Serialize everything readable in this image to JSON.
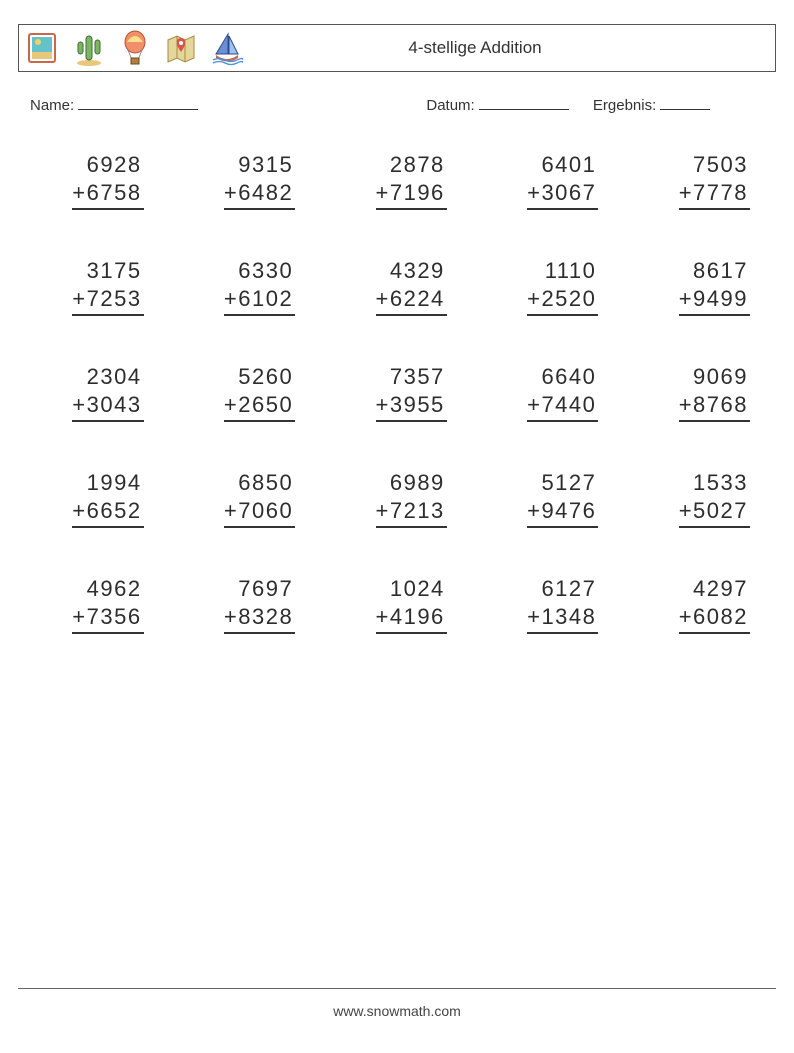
{
  "title": "4-stellige Addition",
  "labels": {
    "name": "Name:",
    "date": "Datum:",
    "score": "Ergebnis:"
  },
  "footer": "www.snowmath.com",
  "operation": "+",
  "columns": 5,
  "fonts": {
    "title_size": 17,
    "body_size": 15,
    "problem_size": 22
  },
  "colors": {
    "text": "#3a3a3a",
    "border": "#555555",
    "underline": "#333333",
    "bg": "#ffffff"
  },
  "icons": [
    "coast-frame",
    "cactus",
    "balloon",
    "map-pin",
    "sailboat"
  ],
  "problems": [
    {
      "a": 6928,
      "b": 6758
    },
    {
      "a": 9315,
      "b": 6482
    },
    {
      "a": 2878,
      "b": 7196
    },
    {
      "a": 6401,
      "b": 3067
    },
    {
      "a": 7503,
      "b": 7778
    },
    {
      "a": 3175,
      "b": 7253
    },
    {
      "a": 6330,
      "b": 6102
    },
    {
      "a": 4329,
      "b": 6224
    },
    {
      "a": 1110,
      "b": 2520
    },
    {
      "a": 8617,
      "b": 9499
    },
    {
      "a": 2304,
      "b": 3043
    },
    {
      "a": 5260,
      "b": 2650
    },
    {
      "a": 7357,
      "b": 3955
    },
    {
      "a": 6640,
      "b": 7440
    },
    {
      "a": 9069,
      "b": 8768
    },
    {
      "a": 1994,
      "b": 6652
    },
    {
      "a": 6850,
      "b": 7060
    },
    {
      "a": 6989,
      "b": 7213
    },
    {
      "a": 5127,
      "b": 9476
    },
    {
      "a": 1533,
      "b": 5027
    },
    {
      "a": 4962,
      "b": 7356
    },
    {
      "a": 7697,
      "b": 8328
    },
    {
      "a": 1024,
      "b": 4196
    },
    {
      "a": 6127,
      "b": 1348
    },
    {
      "a": 4297,
      "b": 6082
    }
  ]
}
